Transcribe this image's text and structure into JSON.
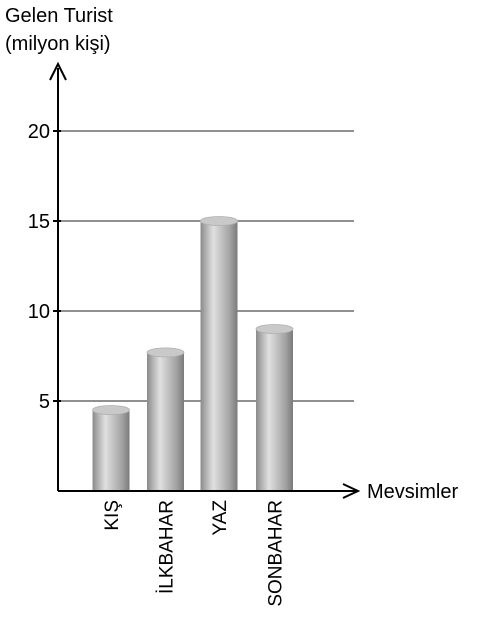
{
  "chart_data": {
    "type": "bar",
    "ylabel_lines": [
      "Gelen Turist",
      "(milyon kişi)"
    ],
    "xlabel": "Mevsimler",
    "categories": [
      "KIŞ",
      "İLKBAHAR",
      "YAZ",
      "SONBAHAR"
    ],
    "values": [
      4.5,
      7.7,
      15,
      9
    ],
    "yticks": [
      5,
      10,
      15,
      20
    ],
    "ylim": [
      0,
      22
    ],
    "grid": true,
    "bar_style": "cylinder",
    "colors": {
      "bar_mid": "#d9d9d9",
      "bar_edge": "#7a7a7a",
      "bar_top": "#c9c9c9",
      "axis": "#000000"
    }
  }
}
